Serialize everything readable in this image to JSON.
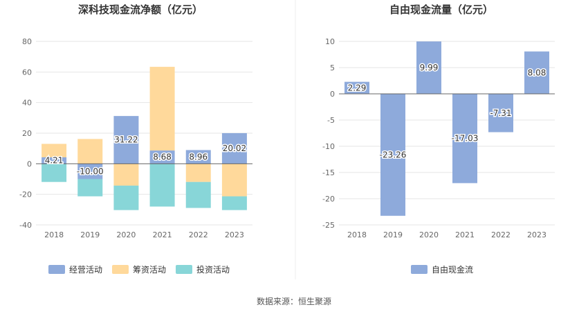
{
  "chart_data": [
    {
      "type": "bar",
      "stacked": true,
      "title": "深科技现金流净额（亿元）",
      "categories": [
        "2018",
        "2019",
        "2020",
        "2021",
        "2022",
        "2023"
      ],
      "ylim": [
        -40,
        80
      ],
      "yticks": [
        80,
        60,
        40,
        20,
        0,
        -20,
        -40
      ],
      "grid": true,
      "legend_position": "bottom",
      "series": [
        {
          "name": "经营活动",
          "color": "#8eaadb",
          "values": [
            4.21,
            -10.0,
            31.22,
            8.68,
            8.96,
            20.02
          ],
          "labels": [
            "4.21",
            "-10.00",
            "31.22",
            "8.68",
            "8.96",
            "20.02"
          ]
        },
        {
          "name": "筹资活动",
          "color": "#ffd99b",
          "values": [
            8.8,
            16.2,
            -14.3,
            54.7,
            -11.9,
            -21.3
          ]
        },
        {
          "name": "投资活动",
          "color": "#88d6d8",
          "values": [
            -11.9,
            -11.3,
            -16.0,
            -28.0,
            -17.0,
            -9.0
          ]
        }
      ]
    },
    {
      "type": "bar",
      "title": "自由现金流量（亿元）",
      "categories": [
        "2018",
        "2019",
        "2020",
        "2021",
        "2022",
        "2023"
      ],
      "ylim": [
        -25,
        10
      ],
      "yticks": [
        10,
        5,
        0,
        -5,
        -10,
        -15,
        -20,
        -25
      ],
      "grid": true,
      "legend_position": "bottom",
      "series": [
        {
          "name": "自由现金流",
          "color": "#8eaadb",
          "values": [
            2.29,
            -23.26,
            9.99,
            -17.03,
            -7.31,
            8.08
          ],
          "labels": [
            "2.29",
            "-23.26",
            "9.99",
            "-17.03",
            "-7.31",
            "8.08"
          ]
        }
      ]
    }
  ],
  "source_text": "数据来源：恒生聚源"
}
